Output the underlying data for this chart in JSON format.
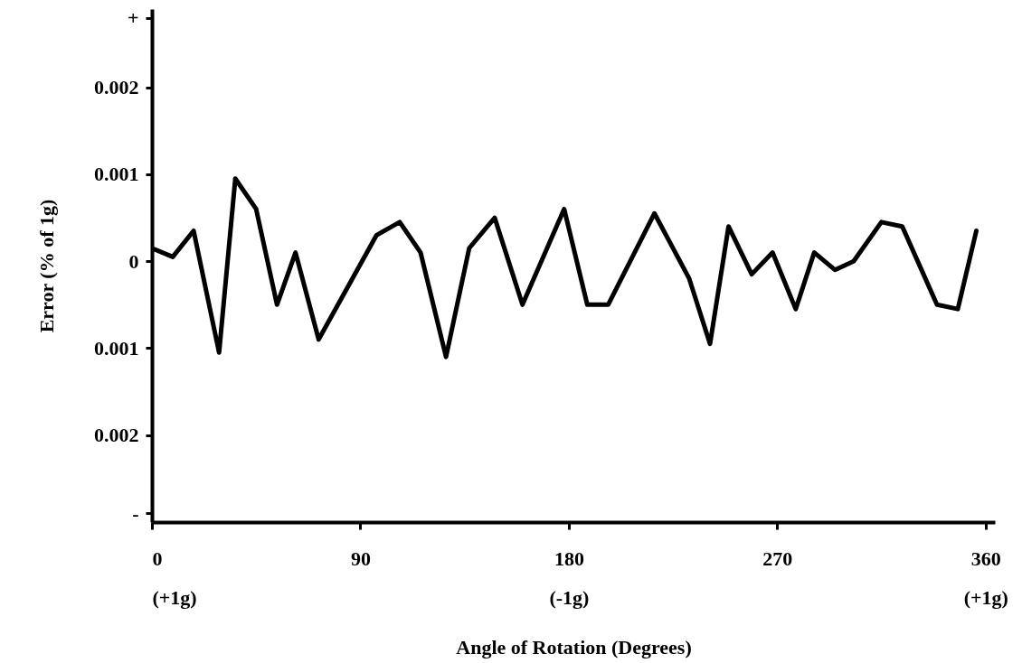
{
  "chart_data": {
    "type": "line",
    "xlabel": "Angle of Rotation (Degrees)",
    "ylabel": "Error (% of 1g)",
    "x": [
      0,
      9,
      18,
      29,
      36,
      45,
      54,
      62,
      72,
      97,
      107,
      116,
      127,
      137,
      148,
      160,
      178,
      188,
      197,
      217,
      232,
      241,
      249,
      259,
      268,
      278,
      286,
      295,
      303,
      315,
      324,
      339,
      348,
      356
    ],
    "series": [
      {
        "color": "#000000",
        "values": [
          0.00015,
          5e-05,
          0.00035,
          -0.00105,
          0.00095,
          0.0006,
          -0.0005,
          0.0001,
          -0.0009,
          0.0003,
          0.00045,
          0.0001,
          -0.0011,
          0.00015,
          0.0005,
          -0.0005,
          0.0006,
          -0.0005,
          -0.0005,
          0.00055,
          -0.0002,
          -0.00095,
          0.0004,
          -0.00015,
          0.0001,
          -0.00055,
          0.0001,
          -0.0001,
          0,
          0.00045,
          0.0004,
          -0.0005,
          -0.00055,
          0.00035
        ]
      }
    ],
    "xlim": [
      0,
      364
    ],
    "xticks": [
      {
        "value": 0,
        "label": "0\n(+1g)"
      },
      90,
      {
        "value": 180,
        "label": "180\n(-1g)"
      },
      270,
      {
        "value": 360,
        "label": "360\n(+1g)"
      }
    ],
    "ylim": [
      -0.003,
      0.0029
    ],
    "yticks": [
      {
        "value": 0.0028,
        "label": "+"
      },
      0.002,
      0.001,
      {
        "value": 0,
        "label": "0"
      },
      {
        "value": -0.001,
        "label": "0.001"
      },
      {
        "value": -0.002,
        "label": "0.002"
      },
      {
        "value": -0.0029,
        "label": "-"
      }
    ],
    "grid": false,
    "legend": false,
    "marker": "none",
    "line_style": "solid"
  }
}
